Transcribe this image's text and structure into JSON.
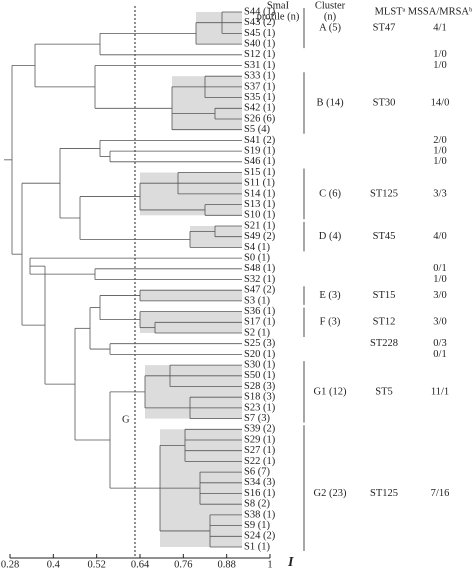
{
  "chart_data": {
    "type": "dendrogram",
    "headers": {
      "profile": [
        "SmaI",
        "profile (n)"
      ],
      "cluster": [
        "Cluster",
        "(n)"
      ],
      "mlst": "MLSTᵃ",
      "ratio": "MSSA/MRSAᵇ"
    },
    "leaves": [
      "S44 (1)",
      "S43 (2)",
      "S45 (1)",
      "S40 (1)",
      "S12 (1)",
      "S31 (1)",
      "S33 (1)",
      "S37 (1)",
      "S35 (1)",
      "S42 (1)",
      "S26 (6)",
      "S5 (4)",
      "S41 (2)",
      "S19 (1)",
      "S46 (1)",
      "S15 (1)",
      "S11 (1)",
      "S14 (1)",
      "S13 (1)",
      "S10 (1)",
      "S21 (1)",
      "S49 (2)",
      "S4 (1)",
      "S0 (1)",
      "S48 (1)",
      "S32 (1)",
      "S47 (2)",
      "S3 (1)",
      "S36 (1)",
      "S17 (1)",
      "S2 (1)",
      "S25 (3)",
      "S20 (1)",
      "S30 (1)",
      "S50 (1)",
      "S28 (3)",
      "S18 (3)",
      "S23 (1)",
      "S7 (3)",
      "S39 (2)",
      "S29 (1)",
      "S27 (1)",
      "S22 (1)",
      "S6 (7)",
      "S34 (3)",
      "S16 (1)",
      "S8 (2)",
      "S38 (1)",
      "S9 (1)",
      "S24 (2)",
      "S1 (1)"
    ],
    "rows": [
      {
        "cluster": "A (5)",
        "mlst": "ST47",
        "ratio": "4/1"
      },
      {
        "ratio": "1/0"
      },
      {
        "ratio": "1/0"
      },
      {
        "cluster": "B (14)",
        "mlst": "ST30",
        "ratio": "14/0"
      },
      {
        "ratio": "2/0"
      },
      {
        "ratio": "1/0"
      },
      {
        "ratio": "1/0"
      },
      {
        "cluster": "C (6)",
        "mlst": "ST125",
        "ratio": "3/3"
      },
      {
        "cluster": "D (4)",
        "mlst": "ST45",
        "ratio": "4/0"
      },
      {
        "ratio": "0/1"
      },
      {
        "ratio": "1/0"
      },
      {
        "cluster": "E (3)",
        "mlst": "ST15",
        "ratio": "3/0"
      },
      {
        "cluster": "F (3)",
        "mlst": "ST12",
        "ratio": "3/0"
      },
      {
        "mlst": "ST228",
        "ratio": "0/3"
      },
      {
        "ratio": "0/1"
      },
      {
        "cluster": "G1 (12)",
        "mlst": "ST5",
        "ratio": "11/1"
      },
      {
        "cluster": "G2 (23)",
        "mlst": "ST125",
        "ratio": "7/16"
      }
    ],
    "group_label": "G",
    "axis_label": "I",
    "xlim": [
      0.28,
      1
    ],
    "xticks": [
      0.28,
      0.4,
      0.52,
      0.64,
      0.76,
      0.88,
      1
    ]
  }
}
